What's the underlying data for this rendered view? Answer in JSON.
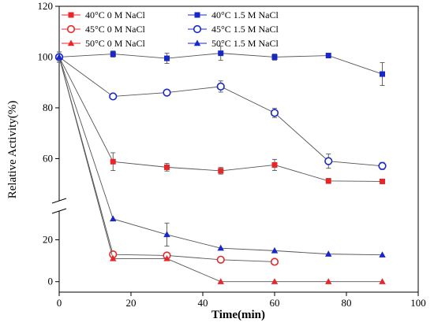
{
  "chart_data": {
    "type": "line",
    "title": "",
    "xlabel": "Time(min)",
    "ylabel": "Relative Activity(%)",
    "xlim": [
      0,
      100
    ],
    "xticks": [
      0,
      20,
      40,
      60,
      80,
      100
    ],
    "y_axis_break": true,
    "lower_segment": {
      "ylim": [
        -5,
        33
      ],
      "ticks": [
        0,
        20
      ]
    },
    "upper_segment": {
      "ylim": [
        44,
        120
      ],
      "ticks": [
        60,
        80,
        100,
        120
      ]
    },
    "grid": false,
    "legend_position": "top-left",
    "series": [
      {
        "name": "40°C  0 M NaCl",
        "color": "#e8262a",
        "marker": "square-filled",
        "x": [
          0,
          15,
          30,
          45,
          60,
          75,
          90
        ],
        "y": [
          100,
          58.8,
          56.6,
          55.2,
          57.5,
          51.2,
          51.0
        ],
        "err": [
          2,
          3.5,
          1.5,
          1.3,
          2.2,
          1.0,
          0.8
        ]
      },
      {
        "name": "45°C  0 M NaCl",
        "color": "#e8262a",
        "marker": "circle-open",
        "x": [
          0,
          15,
          30,
          45,
          60
        ],
        "y": [
          100,
          13.0,
          12.5,
          10.5,
          9.5
        ],
        "err": [
          2,
          0,
          0,
          0,
          0
        ]
      },
      {
        "name": "50°C  0 M NaCl",
        "color": "#e8262a",
        "marker": "triangle-filled",
        "x": [
          0,
          15,
          30,
          45,
          60,
          75,
          90
        ],
        "y": [
          100,
          11.0,
          11.0,
          0,
          0,
          0,
          0
        ],
        "err": [
          2,
          0,
          0,
          0,
          0,
          0,
          0
        ]
      },
      {
        "name": "40°C  1.5  M NaCl",
        "color": "#1727c9",
        "marker": "square-filled",
        "x": [
          0,
          15,
          30,
          45,
          60,
          75,
          90
        ],
        "y": [
          100,
          101.2,
          99.5,
          101.5,
          100.0,
          100.6,
          93.3
        ],
        "err": [
          2,
          1.2,
          2.0,
          2.8,
          1.2,
          0.8,
          4.5
        ]
      },
      {
        "name": "45°C  1.5  M NaCl",
        "color": "#1727c9",
        "marker": "circle-open",
        "x": [
          0,
          15,
          30,
          45,
          60,
          75,
          90
        ],
        "y": [
          100,
          84.5,
          86.0,
          88.4,
          78.0,
          59.0,
          57.1
        ],
        "err": [
          2,
          0.5,
          0.5,
          2.2,
          1.8,
          2.8,
          1.4
        ]
      },
      {
        "name": "50°C  1.5  M NaCl",
        "color": "#1727c9",
        "marker": "triangle-filled",
        "x": [
          0,
          15,
          30,
          45,
          60,
          75,
          90
        ],
        "y": [
          100,
          30.0,
          22.5,
          16.0,
          14.8,
          13.2,
          12.8
        ],
        "err": [
          2,
          0,
          5.5,
          0,
          0,
          0,
          0
        ]
      }
    ]
  }
}
